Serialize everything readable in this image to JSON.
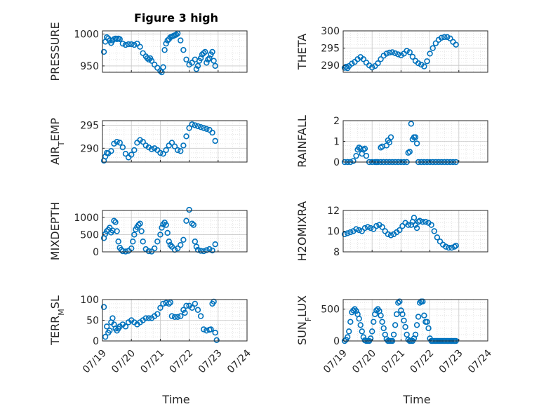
{
  "figure": {
    "title": "Figure 3 high",
    "xlabel_left": "Time",
    "xlabel_right": "Time",
    "xticks": [
      "07/19",
      "07/20",
      "07/21",
      "07/22",
      "07/23",
      "07/24"
    ]
  },
  "colors": {
    "marker": "#0072BD",
    "grid": "#c8c8c8",
    "axis": "#262626"
  },
  "chart_data": [
    {
      "type": "scatter",
      "ylabel": "PRESSURE",
      "xlim": [
        0,
        5
      ],
      "ylim": [
        940,
        1005
      ],
      "yticks": [
        950,
        1000
      ],
      "yticklabels": [
        "950",
        "1000"
      ],
      "x": [
        0.05,
        0.1,
        0.15,
        0.2,
        0.25,
        0.3,
        0.35,
        0.4,
        0.45,
        0.5,
        0.55,
        0.6,
        0.7,
        0.8,
        0.9,
        1.0,
        1.1,
        1.2,
        1.3,
        1.4,
        1.5,
        1.55,
        1.6,
        1.65,
        1.7,
        1.8,
        1.9,
        2.0,
        2.05,
        2.1,
        2.15,
        2.2,
        2.25,
        2.3,
        2.35,
        2.4,
        2.45,
        2.5,
        2.55,
        2.6,
        2.7,
        2.8,
        2.9,
        3.0,
        3.1,
        3.2,
        3.25,
        3.3,
        3.35,
        3.4,
        3.45,
        3.5,
        3.55,
        3.6,
        3.65,
        3.7,
        3.75,
        3.8,
        3.85,
        3.9
      ],
      "y": [
        972,
        988,
        995,
        993,
        990,
        986,
        990,
        992,
        993,
        992,
        993,
        992,
        985,
        983,
        984,
        984,
        983,
        985,
        980,
        970,
        965,
        962,
        960,
        962,
        958,
        952,
        947,
        942,
        940,
        948,
        975,
        985,
        990,
        992,
        995,
        996,
        997,
        998,
        999,
        1001,
        990,
        975,
        960,
        952,
        955,
        960,
        945,
        950,
        958,
        962,
        968,
        970,
        972,
        955,
        960,
        962,
        968,
        972,
        958,
        950
      ],
      "marker": "circle-open"
    },
    {
      "type": "scatter",
      "ylabel": "THETA",
      "xlim": [
        0,
        5
      ],
      "ylim": [
        288,
        300
      ],
      "yticks": [
        290,
        295,
        300
      ],
      "yticklabels": [
        "290",
        "295",
        "300"
      ],
      "x": [
        0.05,
        0.1,
        0.15,
        0.2,
        0.3,
        0.4,
        0.5,
        0.6,
        0.7,
        0.8,
        0.9,
        1.0,
        1.1,
        1.2,
        1.3,
        1.4,
        1.5,
        1.6,
        1.7,
        1.8,
        1.9,
        2.0,
        2.1,
        2.2,
        2.3,
        2.4,
        2.5,
        2.6,
        2.7,
        2.8,
        2.9,
        3.0,
        3.1,
        3.2,
        3.3,
        3.4,
        3.5,
        3.6,
        3.7,
        3.8,
        3.9
      ],
      "y": [
        289.3,
        289.6,
        289.2,
        289.8,
        290.5,
        291.0,
        291.8,
        292.4,
        291.8,
        290.8,
        290.0,
        289.4,
        289.8,
        290.6,
        291.8,
        292.8,
        293.4,
        293.7,
        293.8,
        293.5,
        293.2,
        292.9,
        293.4,
        294.2,
        293.8,
        292.5,
        291.3,
        290.6,
        290.2,
        289.7,
        291.2,
        293.4,
        295.0,
        296.4,
        297.4,
        298.0,
        298.2,
        298.2,
        297.8,
        296.8,
        296.0
      ],
      "marker": "circle-open"
    },
    {
      "type": "scatter",
      "ylabel": "AIR_TEMP",
      "xlim": [
        0,
        5
      ],
      "ylim": [
        287,
        296
      ],
      "yticks": [
        290,
        295
      ],
      "yticklabels": [
        "290",
        "295"
      ],
      "x": [
        0.05,
        0.1,
        0.15,
        0.2,
        0.3,
        0.4,
        0.5,
        0.6,
        0.7,
        0.8,
        0.9,
        1.0,
        1.1,
        1.2,
        1.3,
        1.4,
        1.5,
        1.6,
        1.7,
        1.8,
        1.9,
        2.0,
        2.1,
        2.2,
        2.3,
        2.4,
        2.5,
        2.6,
        2.7,
        2.8,
        2.9,
        3.0,
        3.1,
        3.2,
        3.3,
        3.4,
        3.5,
        3.6,
        3.7,
        3.8,
        3.9
      ],
      "y": [
        287.3,
        288.2,
        289.0,
        288.9,
        289.4,
        291.0,
        291.4,
        291.2,
        290.2,
        288.8,
        288.0,
        288.6,
        289.6,
        291.2,
        291.8,
        291.4,
        290.6,
        290.2,
        289.8,
        290.0,
        289.6,
        289.0,
        288.8,
        289.6,
        290.6,
        291.2,
        290.4,
        289.6,
        289.4,
        290.6,
        292.6,
        294.4,
        295.2,
        295.0,
        294.8,
        294.6,
        294.4,
        294.2,
        294.0,
        293.4,
        291.6
      ],
      "marker": "circle-open"
    },
    {
      "type": "scatter",
      "ylabel": "RAINFALL",
      "xlim": [
        0,
        5
      ],
      "ylim": [
        0,
        2
      ],
      "yticks": [
        0,
        1,
        2
      ],
      "yticklabels": [
        "0",
        "1",
        "2"
      ],
      "x": [
        0.05,
        0.15,
        0.25,
        0.35,
        0.45,
        0.5,
        0.55,
        0.6,
        0.65,
        0.7,
        0.75,
        0.8,
        0.9,
        1.0,
        1.1,
        1.15,
        1.2,
        1.3,
        1.4,
        1.5,
        1.6,
        1.7,
        1.8,
        1.9,
        2.0,
        2.1,
        2.2,
        2.25,
        2.3,
        2.35,
        2.4,
        2.45,
        2.5,
        2.55,
        2.6,
        2.7,
        2.8,
        2.9,
        3.0,
        3.1,
        3.2,
        3.3,
        3.4,
        3.5,
        3.6,
        3.7,
        3.8,
        3.9,
        1.3,
        1.35,
        1.5,
        1.55,
        1.6,
        1.65
      ],
      "y": [
        0,
        0,
        0,
        0.05,
        0.3,
        0.6,
        0.7,
        0.65,
        0.4,
        0.6,
        0.65,
        0.3,
        0,
        0,
        0,
        0,
        0,
        0,
        0,
        0,
        0,
        0,
        0,
        0,
        0,
        0,
        0,
        0.45,
        0.5,
        1.85,
        1.1,
        1.2,
        1.2,
        0.9,
        0,
        0,
        0,
        0,
        0,
        0,
        0,
        0,
        0,
        0,
        0,
        0,
        0,
        0,
        0.7,
        0.75,
        0.8,
        1.05,
        0.95,
        1.2
      ],
      "marker": "circle-open"
    },
    {
      "type": "scatter",
      "ylabel": "MIXDEPTH",
      "xlim": [
        0,
        5
      ],
      "ylim": [
        0,
        1200
      ],
      "yticks": [
        0,
        500,
        1000
      ],
      "yticklabels": [
        "0",
        "500",
        "1000"
      ],
      "x": [
        0.05,
        0.1,
        0.15,
        0.2,
        0.25,
        0.3,
        0.35,
        0.4,
        0.45,
        0.5,
        0.55,
        0.6,
        0.65,
        0.7,
        0.8,
        0.9,
        1.0,
        1.05,
        1.1,
        1.15,
        1.2,
        1.25,
        1.3,
        1.35,
        1.4,
        1.5,
        1.6,
        1.7,
        1.8,
        1.9,
        2.0,
        2.05,
        2.1,
        2.15,
        2.2,
        2.25,
        2.3,
        2.35,
        2.4,
        2.5,
        2.6,
        2.7,
        2.8,
        2.9,
        3.0,
        3.1,
        3.15,
        3.2,
        3.25,
        3.3,
        3.4,
        3.5,
        3.6,
        3.7,
        3.8,
        3.9
      ],
      "y": [
        400,
        520,
        600,
        640,
        700,
        560,
        620,
        900,
        860,
        600,
        300,
        120,
        60,
        20,
        10,
        30,
        100,
        300,
        500,
        650,
        720,
        780,
        820,
        600,
        300,
        80,
        20,
        10,
        100,
        300,
        500,
        700,
        800,
        850,
        780,
        550,
        300,
        200,
        150,
        60,
        100,
        200,
        350,
        900,
        1220,
        820,
        780,
        300,
        150,
        60,
        30,
        20,
        50,
        80,
        40,
        220
      ],
      "marker": "circle-open"
    },
    {
      "type": "scatter",
      "ylabel": "H2OMIXRA",
      "xlim": [
        0,
        5
      ],
      "ylim": [
        8,
        12
      ],
      "yticks": [
        8,
        10,
        12
      ],
      "yticklabels": [
        "8",
        "10",
        "12"
      ],
      "x": [
        0.05,
        0.15,
        0.25,
        0.35,
        0.45,
        0.55,
        0.65,
        0.75,
        0.85,
        0.95,
        1.05,
        1.15,
        1.25,
        1.35,
        1.45,
        1.55,
        1.65,
        1.75,
        1.85,
        1.95,
        2.05,
        2.15,
        2.25,
        2.35,
        2.4,
        2.45,
        2.5,
        2.55,
        2.6,
        2.65,
        2.75,
        2.85,
        2.95,
        3.05,
        3.15,
        3.25,
        3.35,
        3.45,
        3.55,
        3.65,
        3.75,
        3.85,
        3.9
      ],
      "y": [
        9.7,
        9.8,
        9.9,
        10.0,
        10.2,
        10.1,
        10.0,
        10.3,
        10.4,
        10.3,
        10.2,
        10.5,
        10.6,
        10.4,
        10.0,
        9.7,
        9.6,
        9.7,
        9.9,
        10.1,
        10.5,
        10.8,
        10.6,
        10.6,
        10.9,
        11.3,
        10.6,
        10.3,
        10.9,
        11.0,
        10.9,
        10.9,
        10.8,
        10.6,
        10.0,
        9.4,
        9.0,
        8.7,
        8.5,
        8.4,
        8.4,
        8.5,
        8.6
      ],
      "marker": "circle-open"
    },
    {
      "type": "scatter",
      "ylabel": "TERR_MSL",
      "xlim": [
        0,
        5
      ],
      "ylim": [
        0,
        100
      ],
      "yticks": [
        0,
        50,
        100
      ],
      "yticklabels": [
        "0",
        "50",
        "100"
      ],
      "x": [
        0.05,
        0.1,
        0.15,
        0.2,
        0.25,
        0.3,
        0.35,
        0.4,
        0.45,
        0.5,
        0.55,
        0.6,
        0.7,
        0.8,
        0.9,
        1.0,
        1.1,
        1.2,
        1.3,
        1.4,
        1.5,
        1.6,
        1.7,
        1.8,
        1.9,
        2.0,
        2.1,
        2.2,
        2.3,
        2.35,
        2.4,
        2.5,
        2.6,
        2.7,
        2.8,
        2.85,
        2.9,
        3.0,
        3.1,
        3.2,
        3.3,
        3.4,
        3.5,
        3.6,
        3.7,
        3.75,
        3.8,
        3.85,
        3.9,
        3.95
      ],
      "y": [
        82,
        10,
        35,
        20,
        25,
        45,
        55,
        40,
        30,
        25,
        30,
        35,
        40,
        35,
        45,
        50,
        45,
        40,
        45,
        50,
        55,
        55,
        55,
        60,
        65,
        80,
        90,
        92,
        90,
        93,
        60,
        58,
        58,
        60,
        75,
        68,
        85,
        85,
        80,
        90,
        75,
        60,
        28,
        25,
        27,
        28,
        90,
        95,
        20,
        2
      ],
      "marker": "circle-open"
    },
    {
      "type": "scatter",
      "ylabel": "SUN_FLUX",
      "xlim": [
        0,
        5
      ],
      "ylim": [
        0,
        650
      ],
      "yticks": [
        0,
        500
      ],
      "yticklabels": [
        "0",
        "500"
      ],
      "x": [
        0.05,
        0.1,
        0.15,
        0.2,
        0.25,
        0.3,
        0.35,
        0.4,
        0.45,
        0.5,
        0.55,
        0.6,
        0.65,
        0.7,
        0.75,
        0.8,
        0.85,
        0.9,
        0.95,
        1.0,
        1.05,
        1.1,
        1.15,
        1.2,
        1.25,
        1.3,
        1.35,
        1.4,
        1.45,
        1.5,
        1.55,
        1.6,
        1.65,
        1.7,
        1.75,
        1.8,
        1.85,
        1.9,
        1.95,
        2.0,
        2.05,
        2.1,
        2.15,
        2.2,
        2.25,
        2.3,
        2.35,
        2.4,
        2.45,
        2.5,
        2.55,
        2.6,
        2.65,
        2.7,
        2.75,
        2.8,
        2.85,
        2.9,
        2.95,
        3.0,
        3.05,
        3.1,
        3.15,
        3.2,
        3.25,
        3.3,
        3.35,
        3.4,
        3.45,
        3.5,
        3.55,
        3.6,
        3.65,
        3.7,
        3.75,
        3.8,
        3.85,
        3.9
      ],
      "y": [
        0,
        20,
        60,
        150,
        300,
        450,
        480,
        500,
        470,
        420,
        350,
        250,
        150,
        60,
        10,
        0,
        0,
        0,
        40,
        150,
        300,
        420,
        480,
        500,
        470,
        400,
        300,
        200,
        100,
        30,
        0,
        0,
        0,
        0,
        100,
        250,
        420,
        600,
        620,
        480,
        420,
        320,
        220,
        100,
        20,
        0,
        0,
        0,
        40,
        100,
        250,
        380,
        600,
        620,
        620,
        400,
        300,
        300,
        200,
        40,
        0,
        0,
        0,
        0,
        0,
        0,
        0,
        0,
        0,
        0,
        0,
        0,
        0,
        0,
        0,
        0,
        0,
        0
      ],
      "marker": "circle-open"
    }
  ]
}
